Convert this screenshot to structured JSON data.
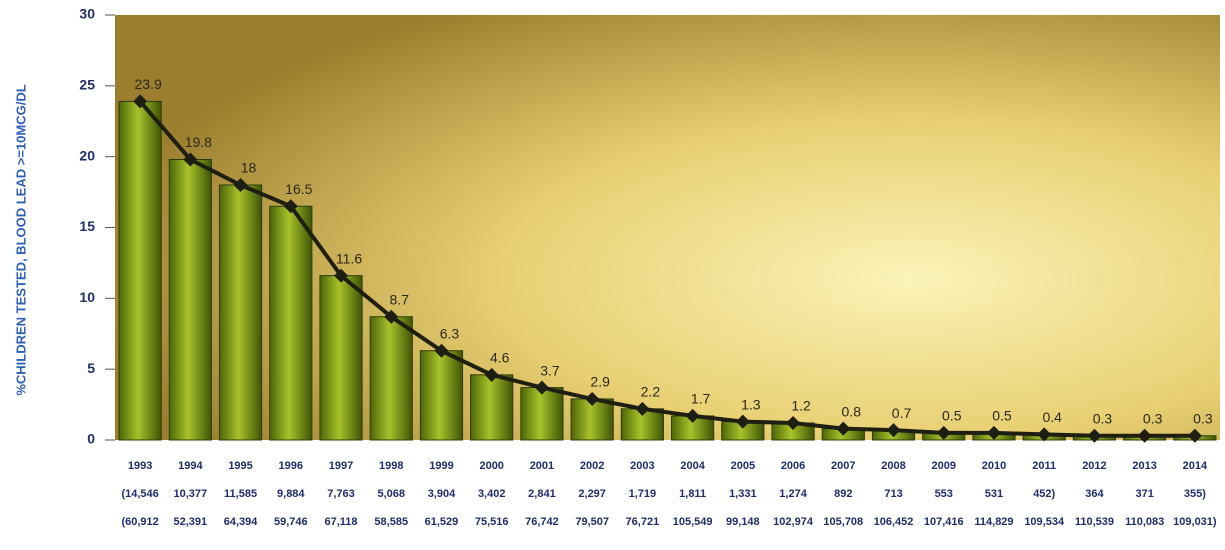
{
  "chart_data": {
    "type": "bar",
    "y_label": "%CHILDREN TESTED, BLOOD LEAD >=10MCG/DL",
    "categories": [
      "1993",
      "1994",
      "1995",
      "1996",
      "1997",
      "1998",
      "1999",
      "2000",
      "2001",
      "2002",
      "2003",
      "2004",
      "2005",
      "2006",
      "2007",
      "2008",
      "2009",
      "2010",
      "2011",
      "2012",
      "2013",
      "2014"
    ],
    "values": [
      23.9,
      19.8,
      18,
      16.5,
      11.6,
      8.7,
      6.3,
      4.6,
      3.7,
      2.9,
      2.2,
      1.7,
      1.3,
      1.2,
      0.8,
      0.7,
      0.5,
      0.5,
      0.4,
      0.3,
      0.3,
      0.3
    ],
    "color": "#6f8f12",
    "line_color": "#1e1e12",
    "sub_labels": [
      [
        "(14,546",
        "10,377",
        "11,585",
        "9,884",
        "7,763",
        "5,068",
        "3,904",
        "3,402",
        "2,841",
        "2,297",
        "1,719",
        "1,811",
        "1,331",
        "1,274",
        "892",
        "713",
        "553",
        "531",
        "452)",
        "364",
        "371",
        "355)"
      ],
      [
        "(60,912",
        "52,391",
        "64,394",
        "59,746",
        "67,118",
        "58,585",
        "61,529",
        "75,516",
        "76,742",
        "79,507",
        "76,721",
        "105,549",
        "99,148",
        "102,974",
        "105,708",
        "106,452",
        "107,416",
        "114,829",
        "109,534",
        "110,539",
        "110,083",
        "109,031)"
      ]
    ],
    "ylim": [
      0,
      30
    ],
    "yticks": [
      0,
      5,
      10,
      15,
      20,
      25,
      30
    ]
  }
}
